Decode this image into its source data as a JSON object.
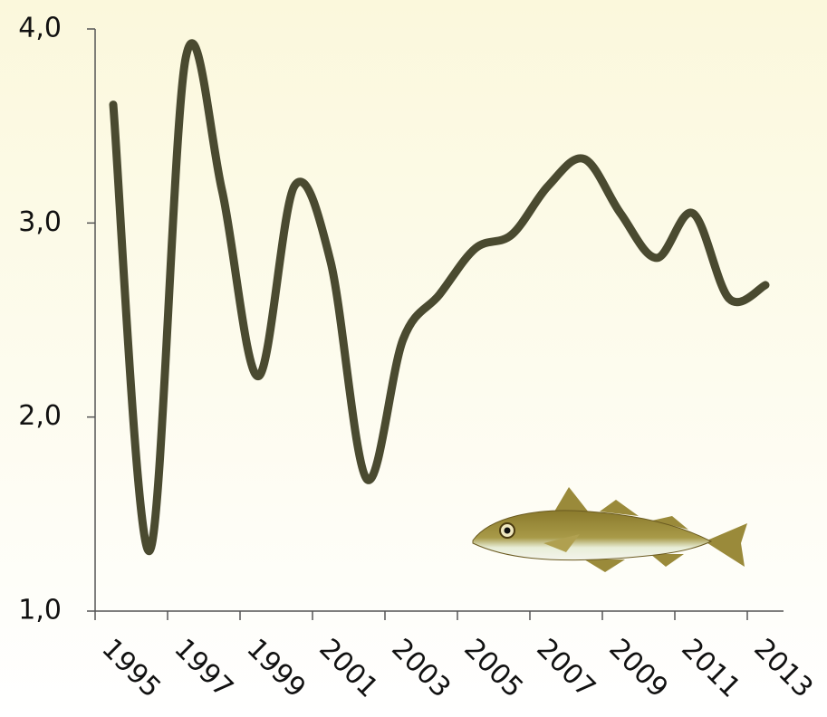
{
  "chart_data": {
    "type": "line",
    "categories": [
      "1995",
      null,
      "1997",
      null,
      "1999",
      null,
      "2001",
      null,
      "2003",
      null,
      "2005",
      null,
      "2007",
      null,
      "2009",
      null,
      "2011",
      null,
      "2013"
    ],
    "series": [
      {
        "color": "#4a4a30",
        "values": [
          3.61,
          1.31,
          3.85,
          3.17,
          2.21,
          3.19,
          2.8,
          1.68,
          2.4,
          2.63,
          2.87,
          2.94,
          3.19,
          3.33,
          3.05,
          2.82,
          3.05,
          2.61,
          2.68
        ]
      }
    ],
    "ylim": [
      1,
      4
    ],
    "yticks": [
      {
        "value": 1,
        "label": "1,0"
      },
      {
        "value": 2,
        "label": "2,0"
      },
      {
        "value": 3,
        "label": "3,0"
      },
      {
        "value": 4,
        "label": "4,0"
      }
    ],
    "grid": false
  }
}
